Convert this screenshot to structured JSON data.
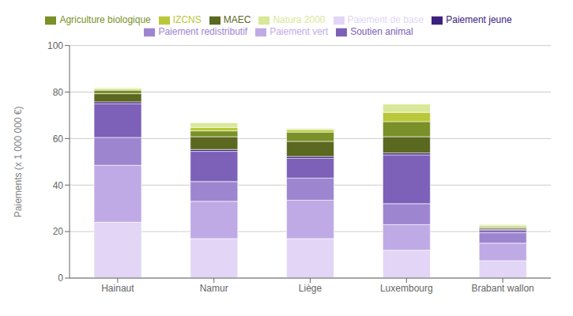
{
  "chart_data": {
    "type": "bar",
    "stacked": true,
    "categories": [
      "Hainaut",
      "Namur",
      "Liège",
      "Luxembourg",
      "Brabant wallon"
    ],
    "series": [
      {
        "name": "Paiement de base",
        "color": "#e2d5f5",
        "values": [
          24.0,
          17.0,
          17.0,
          12.0,
          7.5
        ]
      },
      {
        "name": "Paiement vert",
        "color": "#c0aae5",
        "values": [
          24.5,
          16.0,
          16.5,
          11.0,
          7.5
        ]
      },
      {
        "name": "Paiement redistributif",
        "color": "#9e85d0",
        "values": [
          12.0,
          8.5,
          9.5,
          9.0,
          4.5
        ]
      },
      {
        "name": "Soutien animal",
        "color": "#7d60b8",
        "values": [
          14.5,
          13.0,
          8.5,
          21.0,
          1.0
        ]
      },
      {
        "name": "Paiement jeune",
        "color": "#3d2080",
        "values": [
          0.8,
          0.8,
          0.8,
          0.8,
          0.5
        ]
      },
      {
        "name": "MAEC",
        "color": "#5a6820",
        "values": [
          3.5,
          5.5,
          6.5,
          7.0,
          0.5
        ]
      },
      {
        "name": "Agriculture biologique",
        "color": "#7a9028",
        "values": [
          1.5,
          2.5,
          4.0,
          6.5,
          0.5
        ]
      },
      {
        "name": "IZCNS",
        "color": "#b8c838",
        "values": [
          0.5,
          1.5,
          1.0,
          4.0,
          0.5
        ]
      },
      {
        "name": "Natura 2000",
        "color": "#d8e898",
        "values": [
          0.5,
          2.0,
          0.5,
          3.5,
          0.5
        ]
      }
    ],
    "ylabel": "Paiements (x 1 000 000 €)",
    "ylim": [
      0,
      100
    ],
    "yticks": [
      0,
      20,
      40,
      60,
      80,
      100
    ],
    "grid": true,
    "legend": "top"
  }
}
